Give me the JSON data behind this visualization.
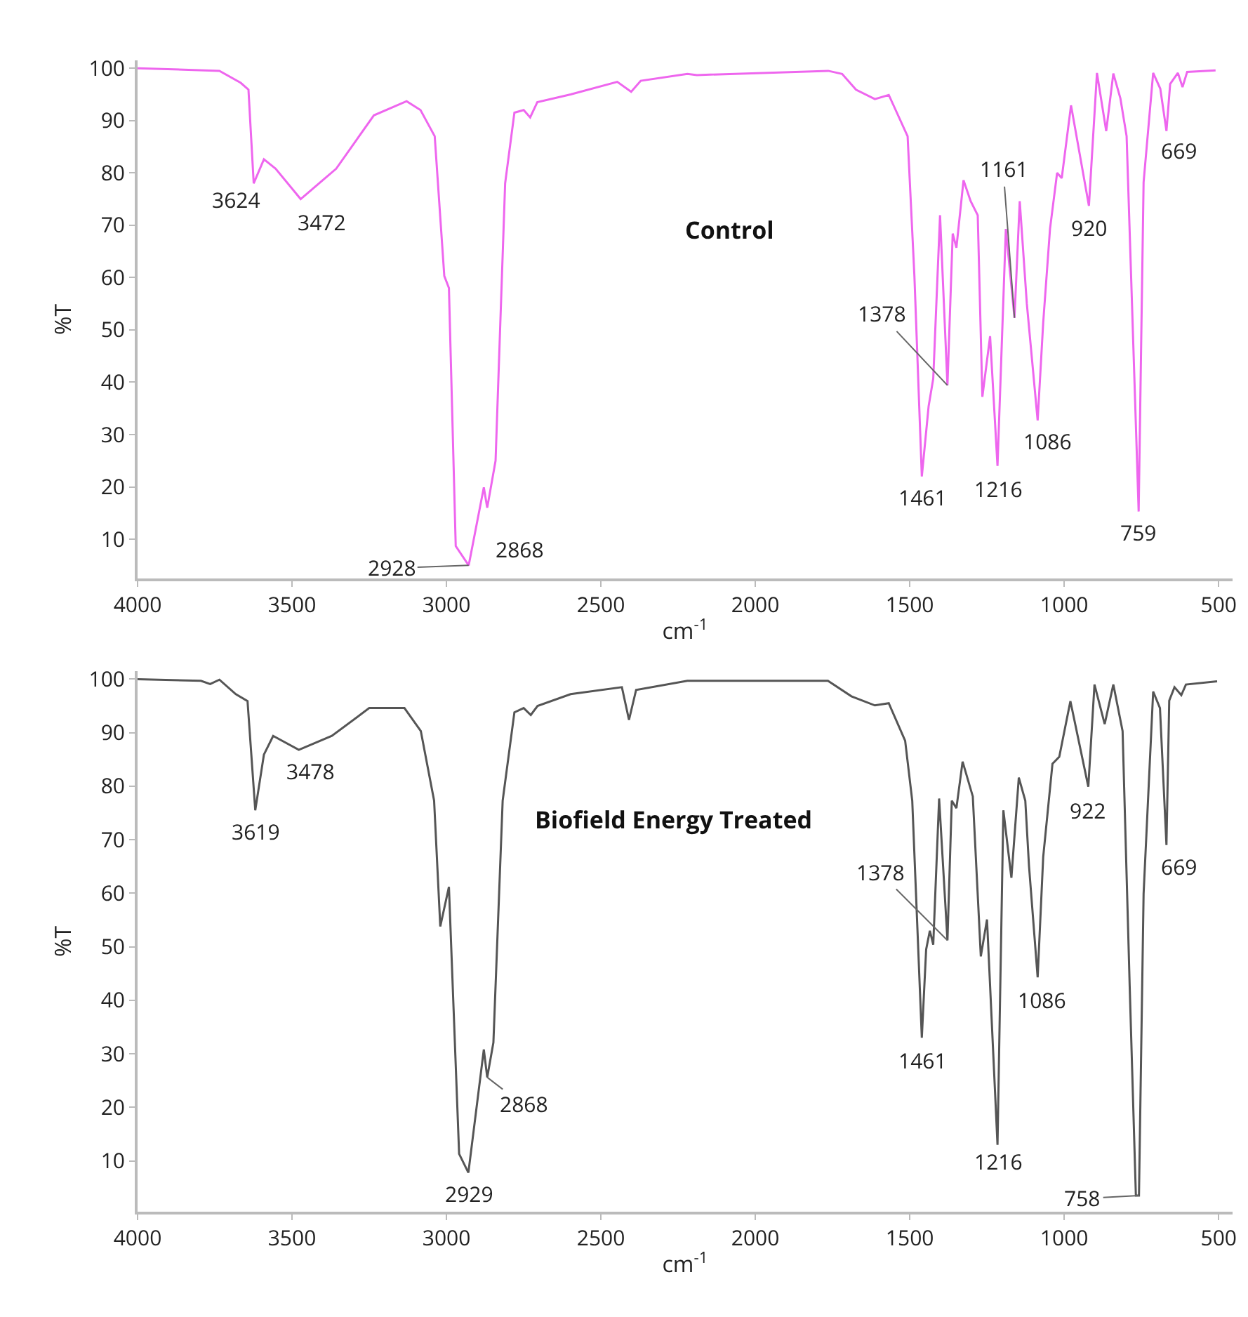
{
  "chart_data": [
    {
      "type": "line",
      "title": "Control",
      "xlabel": "cm$^{-1}$",
      "ylabel": "%T",
      "xlim": [
        4000,
        455
      ],
      "ylim": [
        2.5,
        101.5
      ],
      "xticks": [
        4000,
        3500,
        3000,
        2500,
        2000,
        1500,
        1000,
        500
      ],
      "yticks": [
        10,
        20,
        30,
        40,
        50,
        60,
        70,
        80,
        90,
        100
      ],
      "marker": "none",
      "line_style": "solid",
      "series": [
        {
          "color": "#ee66ee",
          "x": [
            4000,
            3735,
            3666,
            3641,
            3624,
            3591,
            3553,
            3472,
            3357,
            3235,
            3129,
            3084,
            3038,
            3007,
            2992,
            2970,
            2928,
            2879,
            2868,
            2841,
            2810,
            2780,
            2750,
            2729,
            2706,
            2598,
            2447,
            2402,
            2371,
            2220,
            2189,
            1764,
            1719,
            1674,
            1613,
            1568,
            1507,
            1485,
            1461,
            1439,
            1424,
            1402,
            1378,
            1361,
            1349,
            1326,
            1303,
            1280,
            1265,
            1240,
            1216,
            1189,
            1161,
            1144,
            1121,
            1086,
            1068,
            1046,
            1023,
            1008,
            978,
            920,
            894,
            864,
            841,
            818,
            798,
            759,
            743,
            712,
            689,
            669,
            657,
            632,
            617,
            602,
            510
          ],
          "values": [
            100,
            99.5,
            97.2,
            95.9,
            78,
            82.6,
            80.8,
            75,
            80.8,
            91,
            93.7,
            92,
            87,
            60.3,
            58,
            8.7,
            5,
            19.9,
            16,
            25,
            78,
            91.5,
            92,
            90.6,
            93.5,
            95,
            97.4,
            95.5,
            97.6,
            98.9,
            98.7,
            99.5,
            98.9,
            95.9,
            94.1,
            94.9,
            87,
            60.3,
            22,
            35.4,
            40.7,
            71.9,
            39.4,
            68.4,
            65.7,
            78.6,
            74.6,
            71.9,
            37.2,
            48.8,
            24,
            69.3,
            52.3,
            74.6,
            55,
            32.7,
            51.4,
            69.3,
            80,
            79,
            92.9,
            73.7,
            99.1,
            88,
            99,
            94.2,
            87,
            15.3,
            78.2,
            99.1,
            96.1,
            88,
            97,
            99.1,
            96.4,
            99.3,
            99.6
          ]
        }
      ],
      "annotations": [
        {
          "text": "3624",
          "x": 3624,
          "y": 78
        },
        {
          "text": "3472",
          "x": 3472,
          "y": 75
        },
        {
          "text": "2928",
          "x": 2928,
          "y": 5
        },
        {
          "text": "2868",
          "x": 2868,
          "y": 16
        },
        {
          "text": "1461",
          "x": 1461,
          "y": 22
        },
        {
          "text": "1378",
          "x": 1378,
          "y": 39.4
        },
        {
          "text": "1216",
          "x": 1216,
          "y": 24
        },
        {
          "text": "1161",
          "x": 1161,
          "y": 52.3
        },
        {
          "text": "1086",
          "x": 1086,
          "y": 32.7
        },
        {
          "text": "920",
          "x": 920,
          "y": 73.7
        },
        {
          "text": "759",
          "x": 759,
          "y": 15.3
        },
        {
          "text": "669",
          "x": 669,
          "y": 88
        }
      ]
    },
    {
      "type": "line",
      "title": "Biofield Energy Treated",
      "xlabel": "cm$^{-1}$",
      "ylabel": "%T",
      "xlim": [
        4000,
        455
      ],
      "ylim": [
        0.5,
        101.5
      ],
      "xticks": [
        4000,
        3500,
        3000,
        2500,
        2000,
        1500,
        1000,
        500
      ],
      "yticks": [
        10,
        20,
        30,
        40,
        50,
        60,
        70,
        80,
        90,
        100
      ],
      "marker": "none",
      "line_style": "solid",
      "series": [
        {
          "color": "#555555",
          "x": [
            4000,
            3795,
            3765,
            3735,
            3682,
            3644,
            3619,
            3591,
            3561,
            3478,
            3371,
            3250,
            3136,
            3083,
            3040,
            3020,
            2992,
            2959,
            2929,
            2879,
            2868,
            2848,
            2818,
            2780,
            2750,
            2727,
            2705,
            2598,
            2432,
            2409,
            2386,
            2220,
            1765,
            1689,
            1613,
            1568,
            1515,
            1492,
            1461,
            1447,
            1435,
            1424,
            1405,
            1378,
            1364,
            1349,
            1329,
            1296,
            1270,
            1250,
            1216,
            1197,
            1171,
            1147,
            1126,
            1114,
            1086,
            1068,
            1038,
            1016,
            980,
            922,
            902,
            869,
            841,
            811,
            788,
            768,
            758,
            743,
            712,
            690,
            669,
            660,
            643,
            621,
            606,
            505
          ],
          "values": [
            100,
            99.7,
            99.1,
            99.9,
            97.2,
            95.9,
            75.5,
            85.9,
            89.4,
            86.8,
            89.4,
            94.6,
            94.6,
            90.3,
            77.3,
            53.8,
            61.2,
            11.3,
            7.8,
            30.8,
            25.6,
            32.1,
            77.3,
            93.8,
            94.6,
            93.3,
            95,
            97.2,
            98.5,
            92.4,
            98,
            99.7,
            99.7,
            96.8,
            95.1,
            95.5,
            88.5,
            77.3,
            33,
            49.5,
            53,
            50.4,
            77.7,
            51.2,
            77.3,
            75.9,
            84.6,
            78.1,
            48.2,
            55.1,
            13,
            75.5,
            62.9,
            81.6,
            77.3,
            65.1,
            44.3,
            66.8,
            84.2,
            85.5,
            95.9,
            79.9,
            99,
            91.6,
            99,
            90.3,
            42.6,
            3.5,
            3.5,
            59.9,
            97.7,
            94.6,
            69,
            96,
            98.5,
            97,
            99,
            99.6
          ]
        }
      ],
      "annotations": [
        {
          "text": "3619",
          "x": 3619,
          "y": 75.5
        },
        {
          "text": "3478",
          "x": 3478,
          "y": 86.8
        },
        {
          "text": "2929",
          "x": 2929,
          "y": 7.8
        },
        {
          "text": "2868",
          "x": 2868,
          "y": 25.6
        },
        {
          "text": "1461",
          "x": 1461,
          "y": 33
        },
        {
          "text": "1378",
          "x": 1378,
          "y": 51.2
        },
        {
          "text": "1216",
          "x": 1216,
          "y": 13
        },
        {
          "text": "1086",
          "x": 1086,
          "y": 44.3
        },
        {
          "text": "922",
          "x": 922,
          "y": 79.9
        },
        {
          "text": "758",
          "x": 758,
          "y": 3.5
        },
        {
          "text": "669",
          "x": 669,
          "y": 69
        }
      ]
    }
  ]
}
